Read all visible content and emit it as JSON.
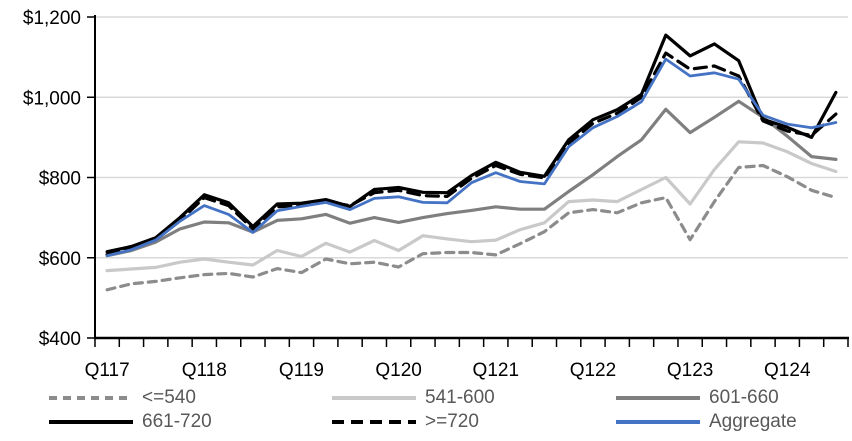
{
  "colors": {
    "background": "#FFFFFF",
    "grid": "#D9D9D9",
    "axis": "#000000",
    "tick_label": "#000000",
    "legend_text": "#595959",
    "accent_blue": "#4472C4"
  },
  "chart_data": {
    "type": "line",
    "title": "",
    "xlabel": "",
    "ylabel": "",
    "grid": true,
    "legend_position": "bottom",
    "ylim": [
      400,
      1200
    ],
    "y_ticks": [
      {
        "value": 1200,
        "label": "$1,200"
      },
      {
        "value": 1000,
        "label": "$1,000"
      },
      {
        "value": 800,
        "label": "$800"
      },
      {
        "value": 600,
        "label": "$600"
      },
      {
        "value": 400,
        "label": "$400"
      }
    ],
    "x_labels": [
      "Q117",
      "Q118",
      "Q119",
      "Q120",
      "Q121",
      "Q122",
      "Q123",
      "Q124"
    ],
    "x_label_indices": [
      0,
      4,
      8,
      12,
      16,
      20,
      24,
      28
    ],
    "categories": [
      "Q1 2017",
      "Q2 2017",
      "Q3 2017",
      "Q4 2017",
      "Q1 2018",
      "Q2 2018",
      "Q3 2018",
      "Q4 2018",
      "Q1 2019",
      "Q2 2019",
      "Q3 2019",
      "Q4 2019",
      "Q1 2020",
      "Q2 2020",
      "Q3 2020",
      "Q4 2020",
      "Q1 2021",
      "Q2 2021",
      "Q3 2021",
      "Q4 2021",
      "Q1 2022",
      "Q2 2022",
      "Q3 2022",
      "Q4 2022",
      "Q1 2023",
      "Q2 2023",
      "Q3 2023",
      "Q4 2023",
      "Q1 2024",
      "Q2 2024",
      "Q3 2024"
    ],
    "series": [
      {
        "name": "<=540",
        "color": "#8C8C8C",
        "dash": "8 6",
        "width": 3.2,
        "values": [
          520,
          535,
          541,
          550,
          558,
          561,
          552,
          573,
          563,
          597,
          585,
          589,
          577,
          610,
          613,
          613,
          607,
          635,
          665,
          712,
          720,
          712,
          737,
          750,
          645,
          740,
          825,
          830,
          802,
          768,
          750
        ]
      },
      {
        "name": "541-600",
        "color": "#C9C9C9",
        "dash": "",
        "width": 3.2,
        "values": [
          568,
          572,
          576,
          589,
          597,
          589,
          582,
          618,
          603,
          636,
          614,
          643,
          618,
          655,
          647,
          640,
          644,
          670,
          687,
          740,
          744,
          740,
          770,
          800,
          734,
          820,
          889,
          886,
          864,
          835,
          815
        ]
      },
      {
        "name": "601-660",
        "color": "#7F7F7F",
        "dash": "",
        "width": 3.2,
        "values": [
          605,
          618,
          639,
          672,
          689,
          687,
          664,
          693,
          697,
          708,
          686,
          700,
          688,
          700,
          710,
          718,
          727,
          721,
          721,
          765,
          807,
          852,
          894,
          970,
          912,
          950,
          990,
          950,
          903,
          852,
          845
        ]
      },
      {
        "name": "661-720",
        "color": "#000000",
        "dash": "",
        "width": 3.2,
        "values": [
          615,
          628,
          650,
          700,
          757,
          737,
          678,
          734,
          736,
          745,
          728,
          770,
          775,
          763,
          762,
          805,
          838,
          813,
          803,
          894,
          944,
          969,
          1007,
          1155,
          1103,
          1133,
          1091,
          945,
          925,
          900,
          1012
        ]
      },
      {
        "name": ">=720",
        "color": "#000000",
        "dash": "12 7",
        "width": 3.2,
        "values": [
          608,
          622,
          645,
          693,
          750,
          730,
          672,
          727,
          730,
          739,
          730,
          762,
          768,
          755,
          753,
          798,
          830,
          808,
          799,
          885,
          935,
          960,
          1000,
          1110,
          1070,
          1078,
          1053,
          941,
          916,
          905,
          958
        ]
      },
      {
        "name": "Aggregate",
        "color": "#4472C4",
        "dash": "",
        "width": 2.8,
        "values": [
          605,
          620,
          644,
          691,
          730,
          708,
          663,
          717,
          728,
          738,
          720,
          748,
          752,
          738,
          737,
          787,
          812,
          790,
          784,
          877,
          924,
          952,
          989,
          1095,
          1053,
          1061,
          1045,
          955,
          933,
          924,
          937
        ]
      }
    ]
  },
  "legend": {
    "rows": [
      [
        "<=540",
        "541-600",
        "601-660"
      ],
      [
        "661-720",
        ">=720",
        "Aggregate"
      ]
    ]
  }
}
